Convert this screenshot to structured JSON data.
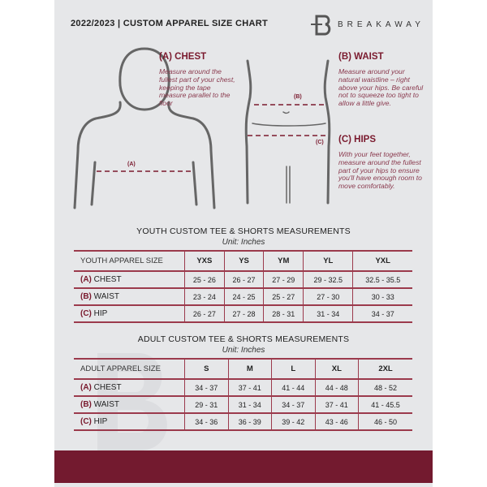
{
  "header": {
    "title": "2022/2023  |  CUSTOM APPAREL SIZE CHART",
    "brand": "BREAKAWAY"
  },
  "guide": {
    "chest": {
      "heading": "(A) CHEST",
      "marker": "(A)",
      "text": "Measure around the fullest part of your chest, keeping the tape measure parallel to the floor"
    },
    "waist": {
      "heading": "(B) WAIST",
      "marker": "(B)",
      "text": "Measure around your natural waistline – right above your hips. Be careful not to squeeze too tight to allow a little give."
    },
    "hips": {
      "heading": "(C) HIPS",
      "marker": "(C)",
      "text": "With your feet together, measure around the fullest part of your hips to ensure you'll have enough room to move comfortably."
    }
  },
  "youth": {
    "title": "YOUTH CUSTOM TEE & SHORTS MEASUREMENTS",
    "unit": "Unit: Inches",
    "header": "YOUTH APPAREL SIZE",
    "sizes": [
      "YXS",
      "YS",
      "YM",
      "YL",
      "YXL"
    ],
    "rows": [
      {
        "letter": "(A)",
        "label": "CHEST",
        "values": [
          "25 - 26",
          "26 - 27",
          "27 - 29",
          "29 - 32.5",
          "32.5 - 35.5"
        ]
      },
      {
        "letter": "(B)",
        "label": "WAIST",
        "values": [
          "23 - 24",
          "24 - 25",
          "25 - 27",
          "27 - 30",
          "30 - 33"
        ]
      },
      {
        "letter": "(C)",
        "label": "HIP",
        "values": [
          "26 - 27",
          "27 - 28",
          "28 - 31",
          "31 - 34",
          "34 - 37"
        ]
      }
    ]
  },
  "adult": {
    "title": "ADULT CUSTOM TEE & SHORTS MEASUREMENTS",
    "unit": "Unit: Inches",
    "header": "ADULT APPAREL SIZE",
    "sizes": [
      "S",
      "M",
      "L",
      "XL",
      "2XL"
    ],
    "rows": [
      {
        "letter": "(A)",
        "label": "CHEST",
        "values": [
          "34 - 37",
          "37 - 41",
          "41 - 44",
          "44 - 48",
          "48 - 52"
        ]
      },
      {
        "letter": "(B)",
        "label": "WAIST",
        "values": [
          "29 - 31",
          "31 - 34",
          "34 - 37",
          "37 - 41",
          "41 - 45.5"
        ]
      },
      {
        "letter": "(C)",
        "label": "HIP",
        "values": [
          "34 - 36",
          "36 - 39",
          "39 - 42",
          "43 - 46",
          "46 - 50"
        ]
      }
    ]
  },
  "colors": {
    "accent": "#731a2f",
    "background": "#e6e7e9"
  }
}
